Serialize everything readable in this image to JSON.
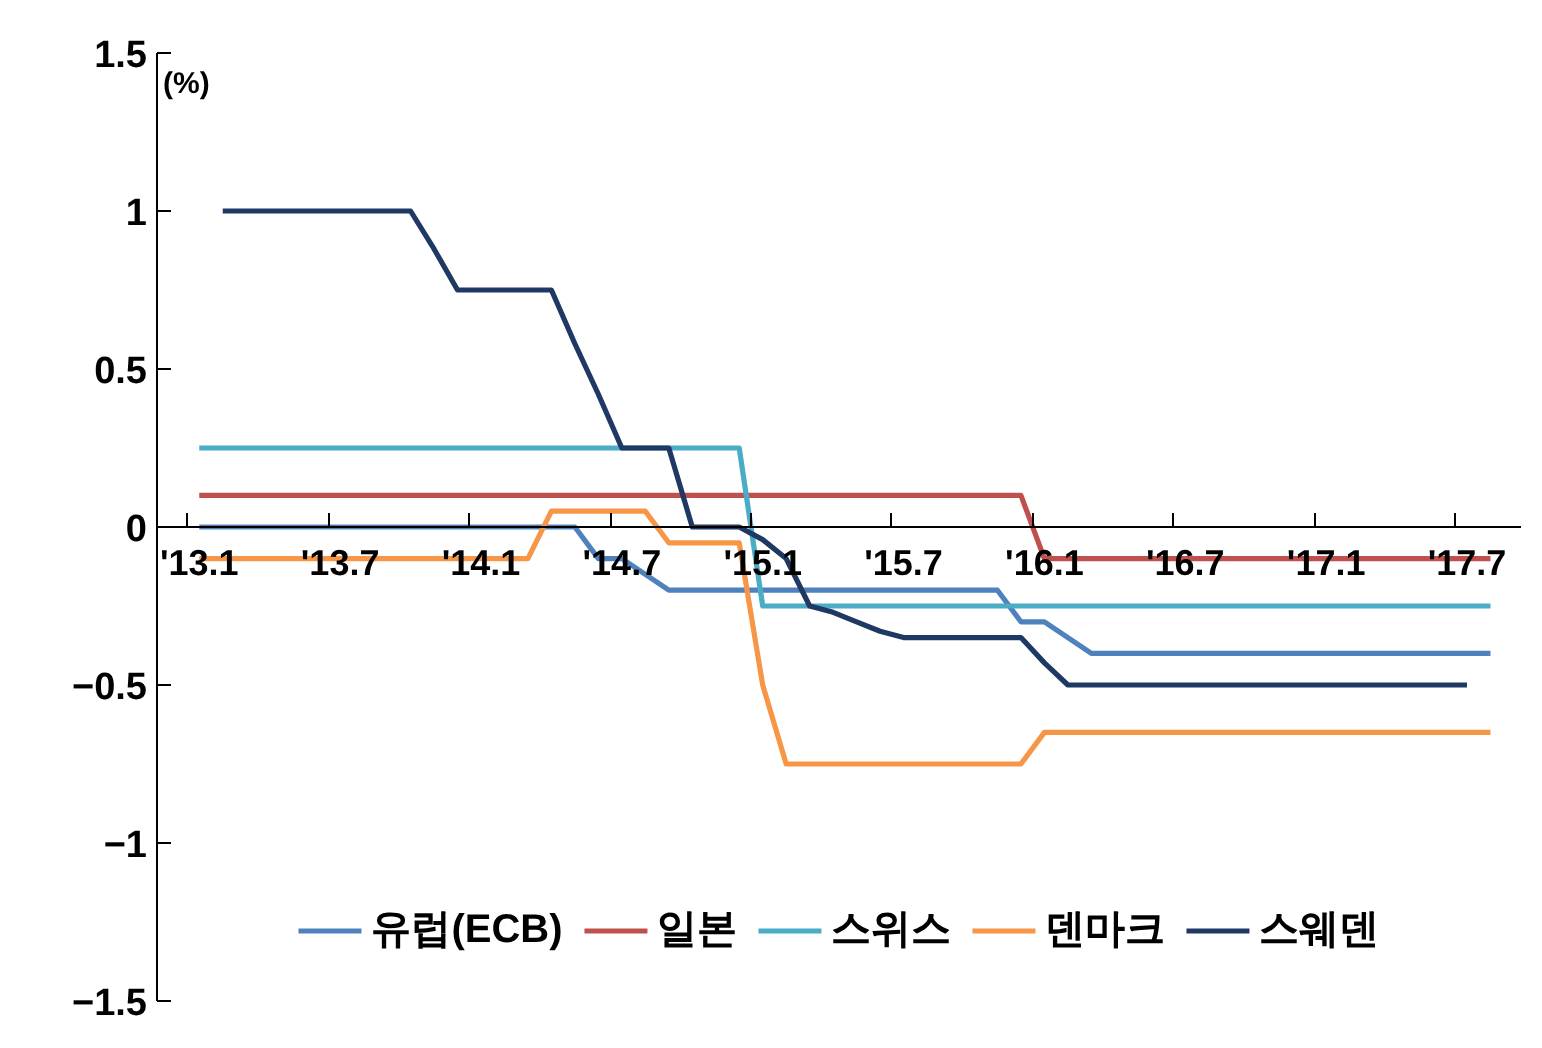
{
  "chart_data": {
    "type": "line",
    "ylabel": "(%)",
    "categories": [
      "'13.1",
      null,
      null,
      null,
      null,
      null,
      "'13.7",
      null,
      null,
      null,
      null,
      null,
      "'14.1",
      null,
      null,
      null,
      null,
      null,
      "'14.7",
      null,
      null,
      null,
      null,
      null,
      "'15.1",
      null,
      null,
      null,
      null,
      null,
      "'15.7",
      null,
      null,
      null,
      null,
      null,
      "'16.1",
      null,
      null,
      null,
      null,
      null,
      "'16.7",
      null,
      null,
      null,
      null,
      null,
      "'17.1",
      null,
      null,
      null,
      null,
      null,
      "'17.7",
      null
    ],
    "series": [
      {
        "name": "유럽(ECB)",
        "color": "#4f81bd",
        "values": [
          0,
          0,
          0,
          0,
          0,
          0,
          0,
          0,
          0,
          0,
          0,
          0,
          0,
          0,
          0,
          0,
          0,
          -0.1,
          -0.1,
          -0.15,
          -0.2,
          -0.2,
          -0.2,
          -0.2,
          -0.2,
          -0.2,
          -0.2,
          -0.2,
          -0.2,
          -0.2,
          -0.2,
          -0.2,
          -0.2,
          -0.2,
          -0.2,
          -0.3,
          -0.3,
          -0.35,
          -0.4,
          -0.4,
          -0.4,
          -0.4,
          -0.4,
          -0.4,
          -0.4,
          -0.4,
          -0.4,
          -0.4,
          -0.4,
          -0.4,
          -0.4,
          -0.4,
          -0.4,
          -0.4,
          -0.4,
          -0.4
        ]
      },
      {
        "name": "일본",
        "color": "#c0504d",
        "values": [
          0.1,
          0.1,
          0.1,
          0.1,
          0.1,
          0.1,
          0.1,
          0.1,
          0.1,
          0.1,
          0.1,
          0.1,
          0.1,
          0.1,
          0.1,
          0.1,
          0.1,
          0.1,
          0.1,
          0.1,
          0.1,
          0.1,
          0.1,
          0.1,
          0.1,
          0.1,
          0.1,
          0.1,
          0.1,
          0.1,
          0.1,
          0.1,
          0.1,
          0.1,
          0.1,
          0.1,
          -0.1,
          -0.1,
          -0.1,
          -0.1,
          -0.1,
          -0.1,
          -0.1,
          -0.1,
          -0.1,
          -0.1,
          -0.1,
          -0.1,
          -0.1,
          -0.1,
          -0.1,
          -0.1,
          -0.1,
          -0.1,
          -0.1,
          -0.1
        ]
      },
      {
        "name": "스위스",
        "color": "#4bacc6",
        "values": [
          0.25,
          0.25,
          0.25,
          0.25,
          0.25,
          0.25,
          0.25,
          0.25,
          0.25,
          0.25,
          0.25,
          0.25,
          0.25,
          0.25,
          0.25,
          0.25,
          0.25,
          0.25,
          0.25,
          0.25,
          0.25,
          0.25,
          0.25,
          0.25,
          -0.25,
          -0.25,
          -0.25,
          -0.25,
          -0.25,
          -0.25,
          -0.25,
          -0.25,
          -0.25,
          -0.25,
          -0.25,
          -0.25,
          -0.25,
          -0.25,
          -0.25,
          -0.25,
          -0.25,
          -0.25,
          -0.25,
          -0.25,
          -0.25,
          -0.25,
          -0.25,
          -0.25,
          -0.25,
          -0.25,
          -0.25,
          -0.25,
          -0.25,
          -0.25,
          -0.25,
          -0.25
        ]
      },
      {
        "name": "덴마크",
        "color": "#f79646",
        "values": [
          -0.1,
          -0.1,
          -0.1,
          -0.1,
          -0.1,
          -0.1,
          -0.1,
          -0.1,
          -0.1,
          -0.1,
          -0.1,
          -0.1,
          -0.1,
          -0.1,
          -0.1,
          0.05,
          0.05,
          0.05,
          0.05,
          0.05,
          -0.05,
          -0.05,
          -0.05,
          -0.05,
          -0.5,
          -0.75,
          -0.75,
          -0.75,
          -0.75,
          -0.75,
          -0.75,
          -0.75,
          -0.75,
          -0.75,
          -0.75,
          -0.75,
          -0.65,
          -0.65,
          -0.65,
          -0.65,
          -0.65,
          -0.65,
          -0.65,
          -0.65,
          -0.65,
          -0.65,
          -0.65,
          -0.65,
          -0.65,
          -0.65,
          -0.65,
          -0.65,
          -0.65,
          -0.65,
          -0.65,
          -0.65
        ]
      },
      {
        "name": "스웨덴",
        "color": "#1f3864",
        "values": [
          null,
          1,
          1,
          1,
          1,
          1,
          1,
          1,
          1,
          1,
          0.88,
          0.75,
          0.75,
          0.75,
          0.75,
          0.75,
          0.58,
          0.42,
          0.25,
          0.25,
          0.25,
          0,
          0,
          0,
          -0.04,
          -0.1,
          -0.25,
          -0.27,
          -0.3,
          -0.33,
          -0.35,
          -0.35,
          -0.35,
          -0.35,
          -0.35,
          -0.35,
          -0.43,
          -0.5,
          -0.5,
          -0.5,
          -0.5,
          -0.5,
          -0.5,
          -0.5,
          -0.5,
          -0.5,
          -0.5,
          -0.5,
          -0.5,
          -0.5,
          -0.5,
          -0.5,
          -0.5,
          -0.5,
          -0.5,
          null
        ]
      }
    ],
    "ylim": [
      -1.5,
      1.5
    ],
    "yticks": [
      -1.5,
      -1,
      -0.5,
      0,
      0.5,
      1,
      1.5
    ],
    "grid": false,
    "legend": "bottom",
    "marker": "none",
    "line_style": "solid"
  }
}
